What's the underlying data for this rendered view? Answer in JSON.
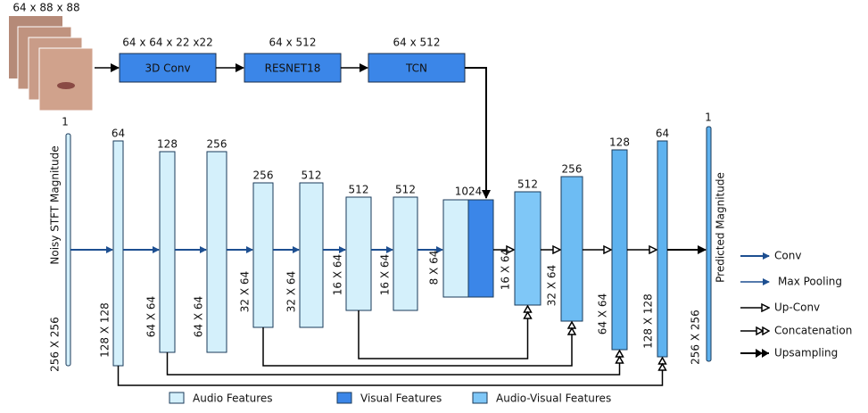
{
  "input": {
    "label": "64 x 88 x 88"
  },
  "visual_pipeline": [
    {
      "dims": "64 x 64 x 22 x22",
      "label": "3D Conv"
    },
    {
      "dims": "64 x 512",
      "label": "RESNET18"
    },
    {
      "dims": "64 x 512",
      "label": "TCN"
    }
  ],
  "input_spectrogram": {
    "channels": "1",
    "label": "Noisy STFT Magnitude",
    "size": "256 X 256"
  },
  "encoder": [
    {
      "channels": "64",
      "size": "128 X 128"
    },
    {
      "channels": "128",
      "size": "64 X 64"
    },
    {
      "channels": "256",
      "size": "64 X 64"
    },
    {
      "channels": "256",
      "size": "32 X 64"
    },
    {
      "channels": "512",
      "size": "32 X 64"
    },
    {
      "channels": "512",
      "size": "16 X 64"
    },
    {
      "channels": "512",
      "size": "16 X 64"
    }
  ],
  "bottleneck": {
    "channels": "1024",
    "size": "8 X 64"
  },
  "decoder": [
    {
      "channels": "512",
      "size": "16 X 64"
    },
    {
      "channels": "256",
      "size": "32 X 64"
    },
    {
      "channels": "128",
      "size": "64 X 64"
    },
    {
      "channels": "64",
      "size": "128 X 128"
    }
  ],
  "output": {
    "channels": "1",
    "label": "Predicted Magnitude",
    "size": "256 X 256"
  },
  "legend_arrows": [
    "Conv",
    "Max Pooling",
    "Up-Conv",
    "Concatenation",
    "Upsampling"
  ],
  "legend_features": [
    "Audio Features",
    "Visual Features",
    "Audio-Visual Features"
  ]
}
